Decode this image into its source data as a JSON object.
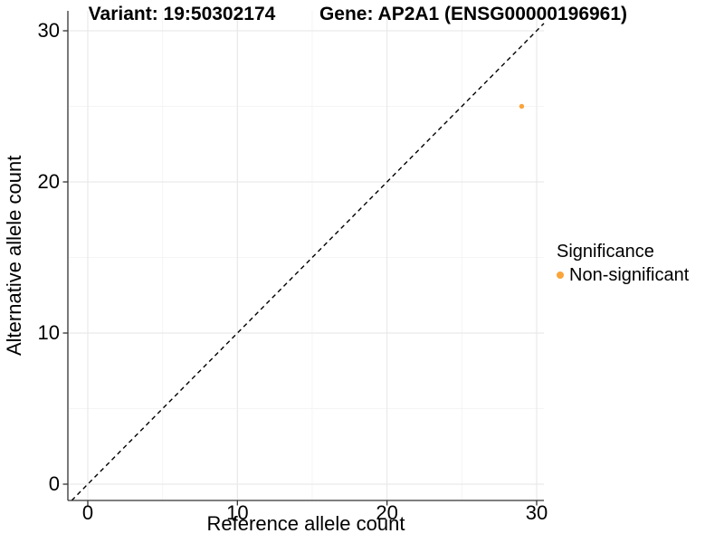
{
  "chart_data": {
    "type": "scatter",
    "title_left": "Variant: 19:50302174",
    "title_right": "Gene: AP2A1 (ENSG00000196961)",
    "xlabel": "Reference allele count",
    "ylabel": "Alternative allele count",
    "x_ticks": [
      0,
      10,
      20,
      30
    ],
    "y_ticks": [
      0,
      10,
      20,
      30
    ],
    "xlim": [
      -1.3,
      30.5
    ],
    "ylim": [
      -1.1,
      31.3
    ],
    "grid": "major and minor gridlines, light gray on white",
    "identity_line": {
      "slope": 1,
      "intercept": 0,
      "style": "dashed",
      "color": "#000000"
    },
    "points": [
      {
        "x": 29,
        "y": 25,
        "series": "Non-significant"
      }
    ],
    "legend": {
      "position": "right",
      "title": "Significance",
      "entries": [
        {
          "label": "Non-significant",
          "color": "#FAA43A"
        }
      ]
    },
    "colors": {
      "background": "#FFFFFF",
      "grid_major": "#E9E9E9",
      "grid_minor": "#F2F2F2",
      "axis": "#333333",
      "point": "#FAA43A",
      "text": "#000000"
    }
  }
}
